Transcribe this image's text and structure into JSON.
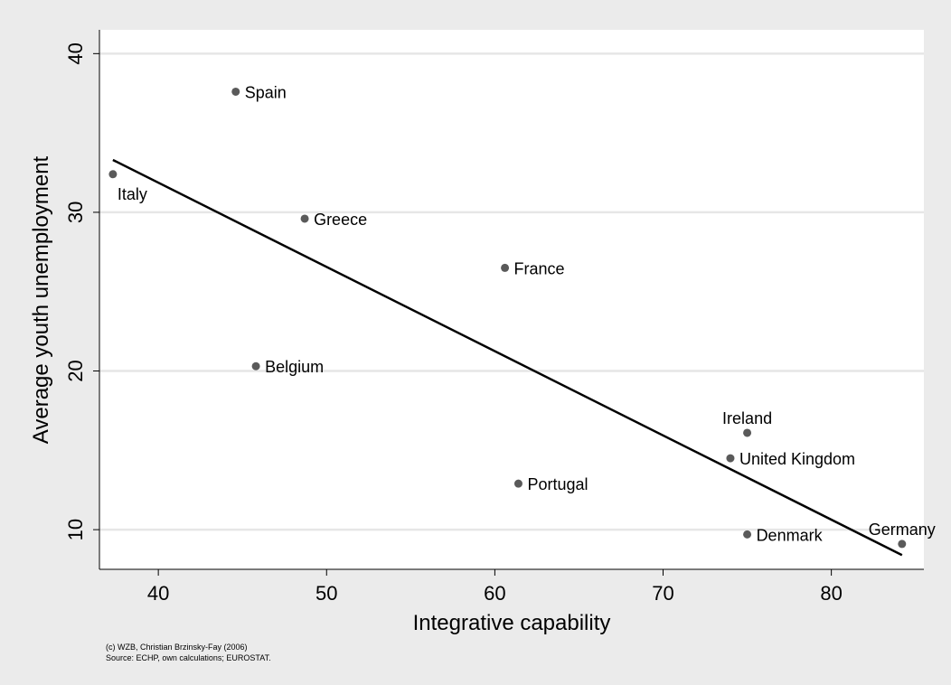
{
  "chart_data": {
    "type": "scatter",
    "xlabel": "Integrative capability",
    "ylabel": "Average youth unemployment",
    "xlim": [
      36.5,
      85.5
    ],
    "ylim": [
      7.5,
      41.5
    ],
    "xticks": [
      40,
      50,
      60,
      70,
      80
    ],
    "yticks": [
      10,
      20,
      30,
      40
    ],
    "grid": "horizontal",
    "legend": "none",
    "points": [
      {
        "label": "Spain",
        "x": 44.6,
        "y": 37.6,
        "label_pos": "right"
      },
      {
        "label": "Italy",
        "x": 37.3,
        "y": 32.4,
        "label_pos": "below-right"
      },
      {
        "label": "Greece",
        "x": 48.7,
        "y": 29.6,
        "label_pos": "right"
      },
      {
        "label": "France",
        "x": 60.6,
        "y": 26.5,
        "label_pos": "right"
      },
      {
        "label": "Belgium",
        "x": 45.8,
        "y": 20.3,
        "label_pos": "right"
      },
      {
        "label": "Ireland",
        "x": 75.0,
        "y": 16.1,
        "label_pos": "above"
      },
      {
        "label": "United Kingdom",
        "x": 74.0,
        "y": 14.5,
        "label_pos": "right"
      },
      {
        "label": "Portugal",
        "x": 61.4,
        "y": 12.9,
        "label_pos": "right"
      },
      {
        "label": "Denmark",
        "x": 75.0,
        "y": 9.7,
        "label_pos": "right"
      },
      {
        "label": "Germany",
        "x": 84.2,
        "y": 9.1,
        "label_pos": "above"
      }
    ],
    "fit_line": {
      "x": [
        37.3,
        84.2
      ],
      "y": [
        33.3,
        8.4
      ]
    },
    "notes": [
      "(c) WZB, Christian Brzinsky-Fay (2006)",
      "Source: ECHP, own calculations; EUROSTAT."
    ],
    "colors": {
      "background": "#ebebeb",
      "plot_background": "#ffffff",
      "gridline": "#e6e6e6",
      "marker": "#5a5a5a",
      "fit_line": "#000000"
    }
  }
}
